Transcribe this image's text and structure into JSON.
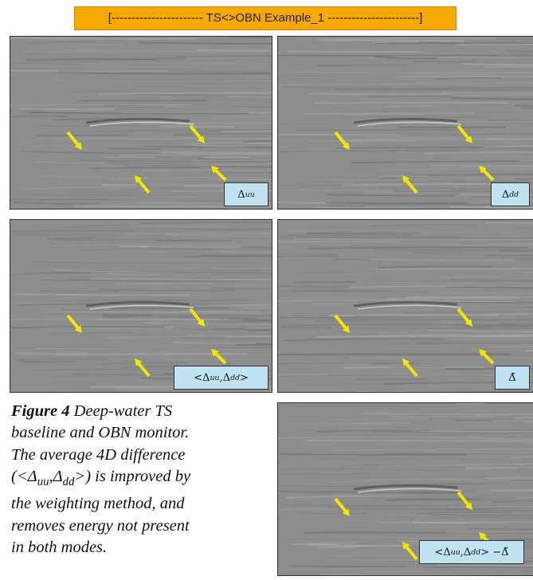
{
  "banner": "[----------------------- TS<>OBN Example_1 -----------------------]",
  "panels": [
    {
      "label": [
        {
          "text": "Δ"
        },
        {
          "sub": "uu"
        }
      ]
    },
    {
      "label": [
        {
          "text": "Δ"
        },
        {
          "sub": "dd"
        }
      ]
    },
    {
      "label": [
        {
          "text": "<Δ"
        },
        {
          "sub": "uu"
        },
        {
          "text": ",Δ"
        },
        {
          "sub": "dd"
        },
        {
          "text": ">"
        }
      ]
    },
    {
      "label": [
        {
          "text": "Δ̃"
        }
      ]
    },
    {
      "label": [
        {
          "text": "<Δ"
        },
        {
          "sub": "uu"
        },
        {
          "text": ",Δ"
        },
        {
          "sub": "dd"
        },
        {
          "text": "> −Δ̃"
        }
      ]
    }
  ],
  "caption": [
    [
      {
        "bold": "Figure 4"
      },
      {
        "text": " Deep-water TS"
      }
    ],
    [
      {
        "text": "baseline and OBN monitor."
      }
    ],
    [
      {
        "text": "The average 4D difference"
      }
    ],
    [
      {
        "text": "(<Δ"
      },
      {
        "sub": "uu"
      },
      {
        "text": ",Δ"
      },
      {
        "sub": "dd"
      },
      {
        "text": ">) is improved by"
      }
    ],
    [
      {
        "text": "the weighting method, and"
      }
    ],
    [
      {
        "text": "removes energy not present"
      }
    ],
    [
      {
        "text": "in both modes."
      }
    ]
  ]
}
